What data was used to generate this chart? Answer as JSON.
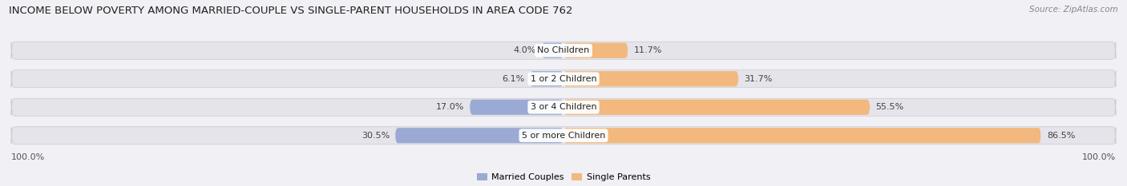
{
  "title": "INCOME BELOW POVERTY AMONG MARRIED-COUPLE VS SINGLE-PARENT HOUSEHOLDS IN AREA CODE 762",
  "source": "Source: ZipAtlas.com",
  "categories": [
    "No Children",
    "1 or 2 Children",
    "3 or 4 Children",
    "5 or more Children"
  ],
  "married_values": [
    4.0,
    6.1,
    17.0,
    30.5
  ],
  "single_values": [
    11.7,
    31.7,
    55.5,
    86.5
  ],
  "married_color": "#9baad4",
  "single_color": "#f2b87e",
  "bar_bg_color": "#e4e4ea",
  "bg_color": "#f0f0f5",
  "married_label": "Married Couples",
  "single_label": "Single Parents",
  "axis_label_left": "100.0%",
  "axis_label_right": "100.0%",
  "title_fontsize": 9.5,
  "label_fontsize": 8,
  "bar_height": 0.62,
  "bar_gap": 0.08,
  "fig_width": 14.06,
  "fig_height": 2.33,
  "dpi": 100,
  "scale": 100
}
